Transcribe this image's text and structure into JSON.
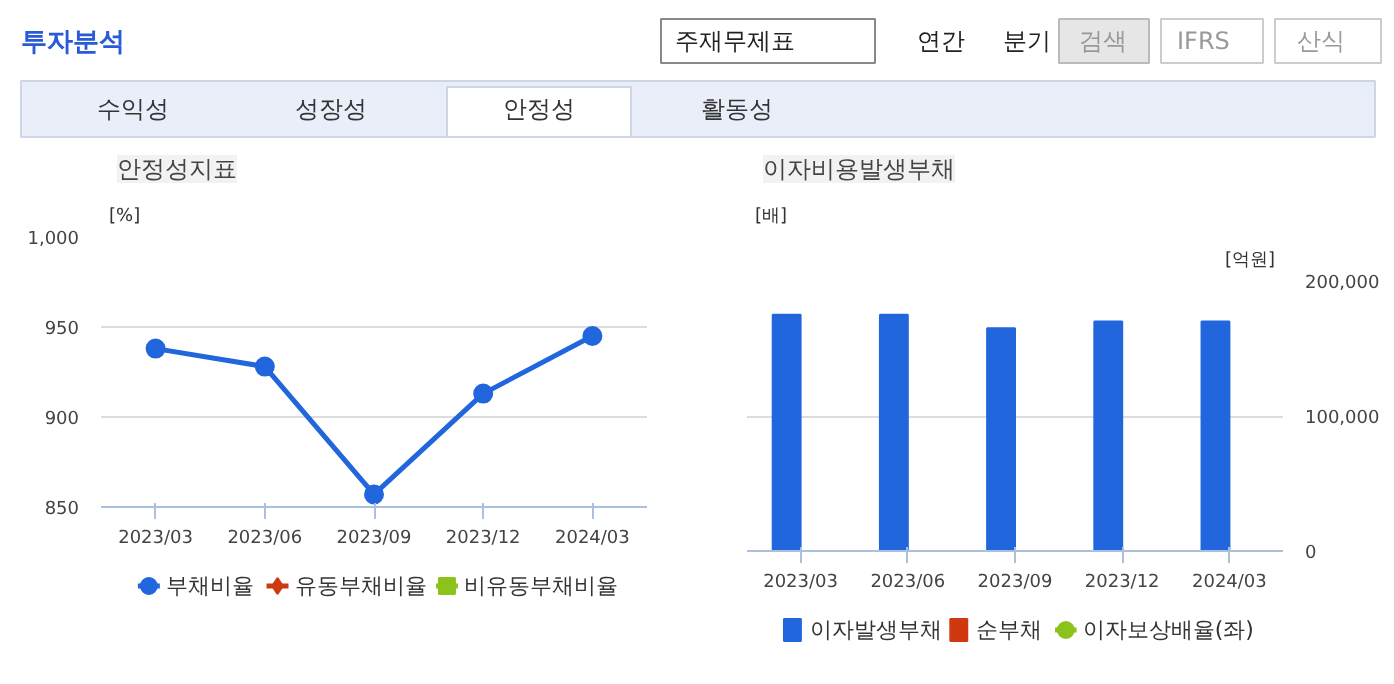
{
  "chart_data": [
    {
      "type": "other",
      "title": "투자분석",
      "annotations": [
        "주재무제표",
        "연간",
        "분기",
        "검색",
        "IFRS",
        "산식",
        "수익성",
        "성장성",
        "안정성",
        "활동성"
      ]
    },
    {
      "type": "line",
      "title": "안정성지표",
      "ylabel": "[%]",
      "categories": [
        "2023/03",
        "2023/06",
        "2023/09",
        "2023/12",
        "2024/03"
      ],
      "series": [
        {
          "name": "부채비율",
          "color": "#2166dd",
          "marker": "circle",
          "values": [
            938,
            928,
            857,
            913,
            945
          ]
        },
        {
          "name": "유동부채비율",
          "color": "#d0390f",
          "marker": "diamond",
          "values": [
            null,
            null,
            null,
            null,
            null
          ]
        },
        {
          "name": "비유동부채비율",
          "color": "#8cc21a",
          "marker": "square",
          "values": [
            null,
            null,
            null,
            null,
            null
          ]
        }
      ],
      "ylim": [
        850,
        1000
      ],
      "yticks": [
        850,
        900,
        950,
        {
          "value": 1000,
          "label": "1,000"
        }
      ],
      "grid": "y",
      "legend": "bottom",
      "line_style": "solid"
    },
    {
      "type": "bar",
      "title": "이자비용발생부채",
      "ylabel": "[배]",
      "y2label": "[억원]",
      "categories": [
        "2023/03",
        "2023/06",
        "2023/09",
        "2023/12",
        "2024/03"
      ],
      "series": [
        {
          "name": "이자발생부채",
          "color": "#2166dd",
          "axis": "y2",
          "values": [
            175000,
            175000,
            165000,
            170000,
            170000
          ]
        },
        {
          "name": "순부채",
          "color": "#d0390f",
          "axis": "y2",
          "values": [
            null,
            null,
            null,
            null,
            null
          ]
        },
        {
          "name": "이자보상배율(좌)",
          "type": "line",
          "marker": "circle",
          "color": "#8cc21a",
          "axis": "y",
          "values": [
            null,
            null,
            null,
            null,
            null
          ]
        }
      ],
      "y2lim": [
        0,
        200000
      ],
      "y2ticks": [
        0,
        {
          "value": 100000,
          "label": "100,000"
        },
        {
          "value": 200000,
          "label": "200,000"
        }
      ],
      "grid": "y",
      "legend": "bottom"
    }
  ]
}
